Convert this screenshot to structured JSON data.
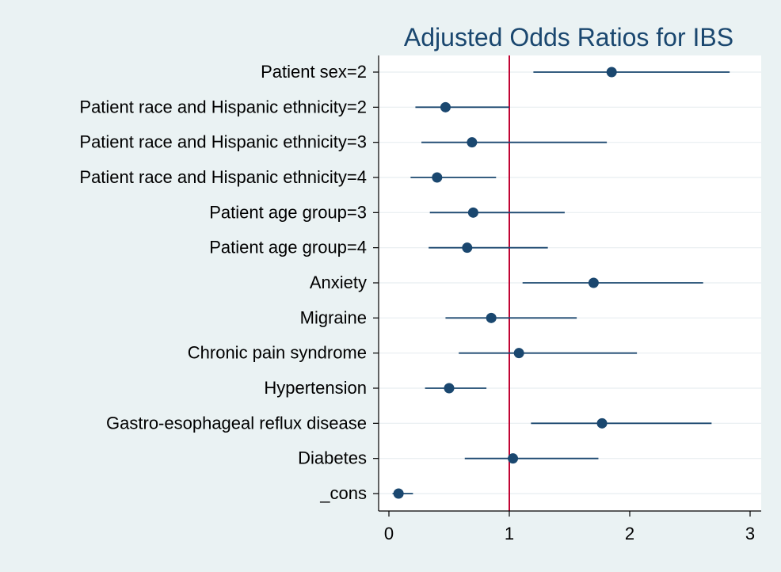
{
  "chart_data": {
    "type": "coefficient-plot",
    "title": "Adjusted Odds Ratios for IBS",
    "xlabel": "",
    "ylabel": "",
    "xlim": [
      -0.1,
      3.1
    ],
    "xticks": [
      "0",
      "1",
      "2",
      "3"
    ],
    "reference_line": 1,
    "categories": [
      "Patient sex=2",
      "Patient race and Hispanic ethnicity=2",
      "Patient race and Hispanic ethnicity=3",
      "Patient race and Hispanic ethnicity=4",
      "Patient age group=3",
      "Patient age group=4",
      "Anxiety",
      "Migraine",
      "Chronic pain syndrome",
      "Hypertension",
      "Gastro-esophageal reflux disease",
      "Diabetes",
      "_cons"
    ],
    "estimates": [
      1.85,
      0.47,
      0.69,
      0.4,
      0.7,
      0.65,
      1.7,
      0.85,
      1.08,
      0.5,
      1.77,
      1.03,
      0.08
    ],
    "ci_lower": [
      1.2,
      0.22,
      0.27,
      0.18,
      0.34,
      0.33,
      1.11,
      0.47,
      0.58,
      0.3,
      1.18,
      0.63,
      0.03
    ],
    "ci_upper": [
      2.83,
      1.0,
      1.81,
      0.89,
      1.46,
      1.32,
      2.61,
      1.56,
      2.06,
      0.81,
      2.68,
      1.74,
      0.2
    ],
    "colors": {
      "background": "#eaf2f3",
      "plot_background": "#ffffff",
      "marker": "#1a476f",
      "ci_line": "#1a476f",
      "reference": "#c10534",
      "gridline": "#e8eef1",
      "axis": "#000000",
      "text": "#000000",
      "title": "#1a476f"
    }
  }
}
